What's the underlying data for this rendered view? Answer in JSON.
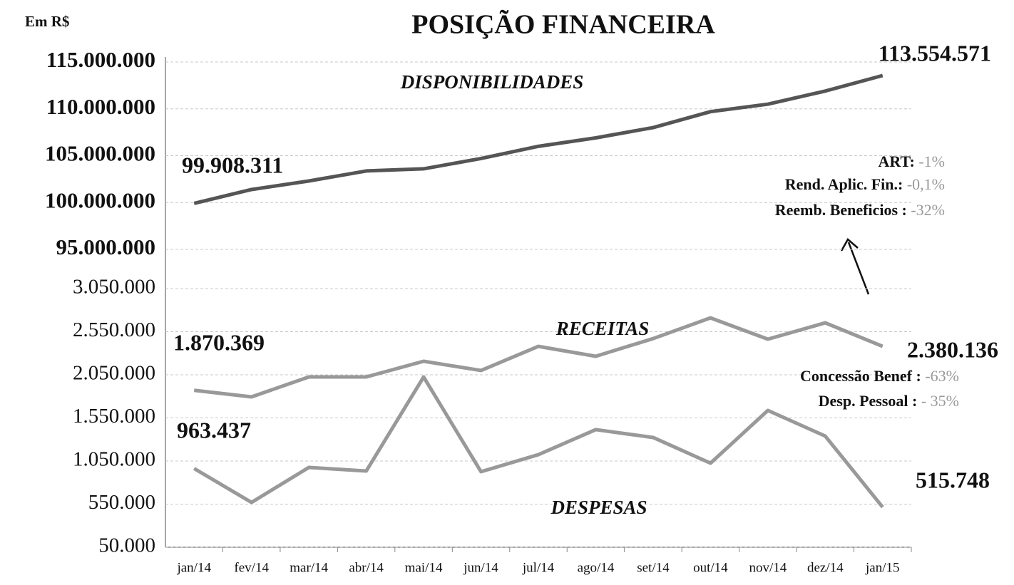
{
  "chart_data": [
    {
      "type": "line",
      "title": "POSIÇÃO FINANCEIRA",
      "ylabel": "Em R$",
      "ylim": [
        95000000,
        115000000
      ],
      "yticks": [
        {
          "value": 95000000,
          "label": "95.000.000"
        },
        {
          "value": 100000000,
          "label": "100.000.000"
        },
        {
          "value": 105000000,
          "label": "105.000.000"
        },
        {
          "value": 110000000,
          "label": "110.000.000"
        },
        {
          "value": 115000000,
          "label": "115.000.000"
        }
      ],
      "grid": true,
      "series": [
        {
          "name": "DISPONIBILIDADES",
          "color": "#555555",
          "values": [
            99908311,
            101390000,
            102300000,
            103370000,
            103600000,
            104700000,
            106000000,
            106900000,
            108000000,
            109700000,
            110500000,
            111900000,
            113554571
          ],
          "value_labels": [
            "99.908.311",
            null,
            null,
            null,
            null,
            null,
            null,
            null,
            null,
            null,
            null,
            null,
            "113.554.571"
          ]
        }
      ],
      "annotations": [
        {
          "label": "ART:",
          "value": "-1%"
        },
        {
          "label": "Rend. Aplic. Fin.:",
          "value": "-0,1%"
        },
        {
          "label": "Reemb. Beneficios :",
          "value": "-32%"
        }
      ]
    },
    {
      "type": "line",
      "categories": [
        "jan/14",
        "fev/14",
        "mar/14",
        "abr/14",
        "mai/14",
        "jun/14",
        "jul/14",
        "ago/14",
        "set/14",
        "out/14",
        "nov/14",
        "dez/14",
        "jan/15"
      ],
      "ylim": [
        50000,
        3050000
      ],
      "yticks": [
        {
          "value": 50000,
          "label": "50.000"
        },
        {
          "value": 550000,
          "label": "550.000"
        },
        {
          "value": 1050000,
          "label": "1.050.000"
        },
        {
          "value": 1550000,
          "label": "1.550.000"
        },
        {
          "value": 2050000,
          "label": "2.050.000"
        },
        {
          "value": 2550000,
          "label": "2.550.000"
        },
        {
          "value": 3050000,
          "label": "3.050.000"
        }
      ],
      "grid": true,
      "series": [
        {
          "name": "RECEITAS",
          "color": "#999999",
          "values": [
            1870369,
            1794000,
            2025000,
            2025000,
            2207000,
            2100000,
            2380000,
            2265000,
            2470000,
            2710000,
            2463000,
            2653000,
            2380136
          ],
          "value_labels": [
            "1.870.369",
            null,
            null,
            null,
            null,
            null,
            null,
            null,
            null,
            null,
            null,
            null,
            "2.380.136"
          ]
        },
        {
          "name": "DESPESAS",
          "color": "#999999",
          "values": [
            963437,
            570000,
            976000,
            934000,
            2025000,
            926000,
            1124000,
            1414000,
            1323000,
            1025000,
            1637000,
            1339000,
            515748
          ],
          "value_labels": [
            "963.437",
            null,
            null,
            null,
            null,
            null,
            null,
            null,
            null,
            null,
            null,
            null,
            "515.748"
          ]
        }
      ],
      "annotations": [
        {
          "label": "Concessão  Benef :",
          "value": "-63%"
        },
        {
          "label": "Desp. Pessoal :",
          "value": "- 35%"
        }
      ]
    }
  ]
}
